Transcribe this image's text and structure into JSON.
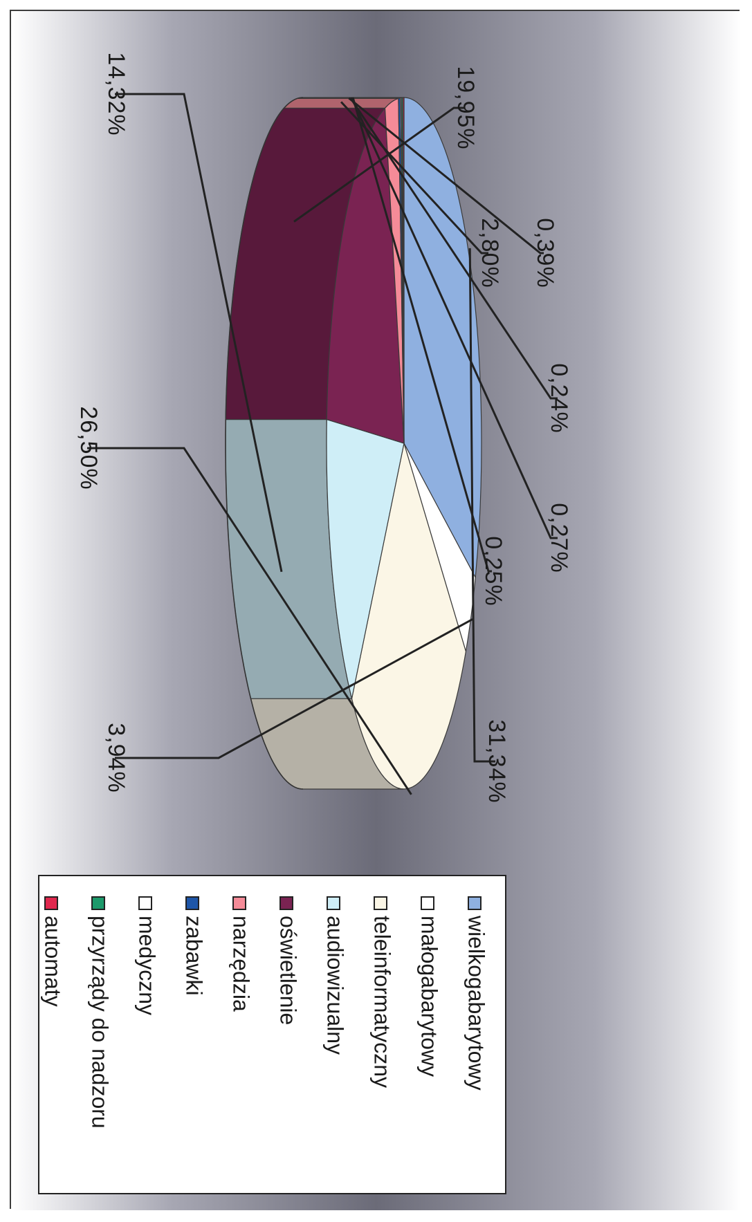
{
  "chart_data": {
    "type": "pie",
    "title": "",
    "legend_position": "right",
    "series": [
      {
        "name": "wielkogabarytowy",
        "value": 31.34,
        "label": "31,34%",
        "color": "#8fb0e0"
      },
      {
        "name": "małogabarytowy",
        "value": 3.94,
        "label": "3,94%",
        "color": "#ffffff"
      },
      {
        "name": "teleinformatyczny",
        "value": 26.5,
        "label": "26,50%",
        "color": "#fbf6e6"
      },
      {
        "name": "audiowizualny",
        "value": 14.32,
        "label": "14,32%",
        "color": "#cfeef7"
      },
      {
        "name": "oświetlenie",
        "value": 19.95,
        "label": "19,95%",
        "color": "#7a2352"
      },
      {
        "name": "narzędzia",
        "value": 2.8,
        "label": "2,80%",
        "color": "#f58b98"
      },
      {
        "name": "zabawki",
        "value": 0.39,
        "label": "0,39%",
        "color": "#1e56a8"
      },
      {
        "name": "medyczny",
        "value": 0.24,
        "label": "0,24%",
        "color": "#ffffff"
      },
      {
        "name": "przyrządy do nadzoru",
        "value": 0.27,
        "label": "0,27%",
        "color": "#1c9a6b"
      },
      {
        "name": "automaty",
        "value": 0.25,
        "label": "0,25%",
        "color": "#e0284e"
      }
    ]
  }
}
